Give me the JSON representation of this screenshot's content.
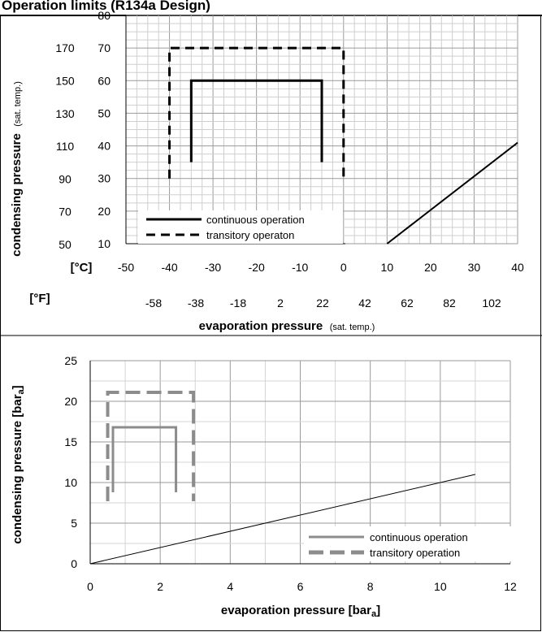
{
  "header": {
    "title": "Operation limits (R134a Design)"
  },
  "chart_data": [
    {
      "type": "line",
      "title": "",
      "ylabel": "condensing pressure",
      "ylabel_suffix": "(sat. temp.)",
      "xlabel": "evaporation pressure",
      "xlabel_suffix": "(sat. temp.)",
      "x_unit_c_label": "[°C]",
      "x_unit_f_label": "[°F]",
      "xlim": [
        -50,
        40
      ],
      "ylim": [
        10,
        80
      ],
      "x_ticks_c": [
        "-50",
        "-40",
        "-30",
        "-20",
        "-10",
        "0",
        "10",
        "20",
        "30",
        "40"
      ],
      "x_ticks_f": [
        "-58",
        "-38",
        "-18",
        "2",
        "22",
        "42",
        "62",
        "82",
        "102"
      ],
      "y_ticks_c": [
        "10",
        "20",
        "30",
        "40",
        "50",
        "60",
        "70",
        "80"
      ],
      "y_ticks_f": [
        "50",
        "70",
        "90",
        "110",
        "130",
        "150",
        "170"
      ],
      "grid": true,
      "legend_position": "bottom-left",
      "series": [
        {
          "name": "continuous operation",
          "style": "solid",
          "color": "#000000",
          "x": [
            -35,
            -35,
            -5,
            -5
          ],
          "y": [
            35,
            60,
            60,
            35
          ]
        },
        {
          "name": "transitory operaton",
          "style": "dashed",
          "color": "#000000",
          "x": [
            -40,
            -40,
            0,
            0
          ],
          "y": [
            30,
            70,
            70,
            30
          ]
        },
        {
          "name": "",
          "style": "solid",
          "color": "#000000",
          "x": [
            10,
            40
          ],
          "y": [
            10,
            41
          ]
        }
      ]
    },
    {
      "type": "line",
      "title": "",
      "ylabel": "condensing pressure [bar",
      "ylabel_sub": "a",
      "ylabel_end": "]",
      "xlabel": "evaporation pressure [bar",
      "xlabel_sub": "a",
      "xlabel_end": "]",
      "xlim": [
        0,
        12
      ],
      "ylim": [
        0,
        25
      ],
      "x_ticks": [
        "0",
        "2",
        "4",
        "6",
        "8",
        "10",
        "12"
      ],
      "y_ticks": [
        "0",
        "5",
        "10",
        "15",
        "20",
        "25"
      ],
      "grid": true,
      "legend_position": "bottom-right",
      "series": [
        {
          "name": "continuous operation",
          "style": "solid",
          "color": "#8c8c8c",
          "x": [
            0.65,
            0.65,
            2.45,
            2.45
          ],
          "y": [
            8.8,
            16.8,
            16.8,
            8.8
          ]
        },
        {
          "name": "transitory operation",
          "style": "dashed",
          "color": "#8c8c8c",
          "x": [
            0.5,
            0.5,
            2.95,
            2.95
          ],
          "y": [
            7.7,
            21.1,
            21.1,
            7.7
          ]
        },
        {
          "name": "",
          "style": "solid",
          "color": "#000000",
          "x": [
            0,
            11
          ],
          "y": [
            0,
            11
          ]
        }
      ]
    }
  ]
}
